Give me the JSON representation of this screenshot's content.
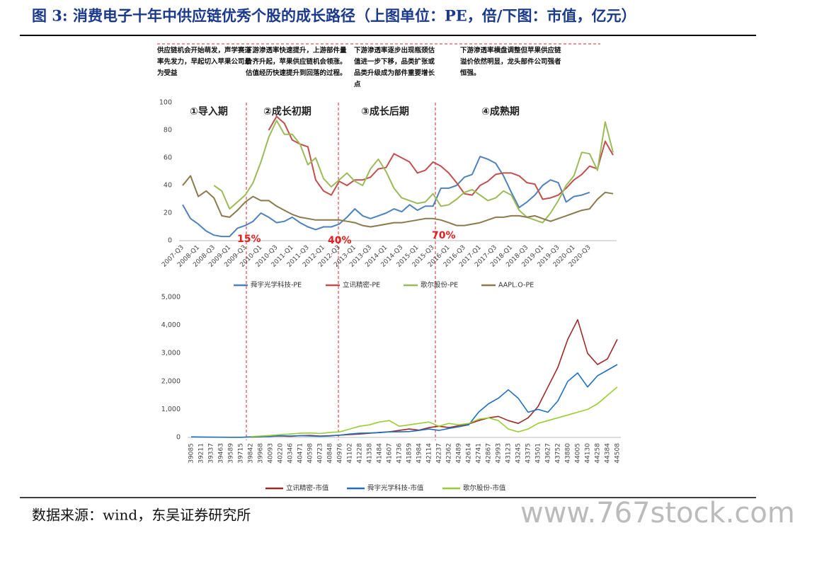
{
  "title": "图 3: 消费电子十年中供应链优秀个股的成长路径（上图单位：PE，倍/下图：市值，亿元）",
  "source": "数据来源：wind，东吴证券研究所",
  "watermark": "www.767stock.com",
  "chart_data": [
    {
      "type": "line",
      "notes": [
        "供应链机会开始萌发，声学赛道率先发力，早起切入苹果公司最为受益",
        "下游渗透率快速提升，上游部件量价齐升起，苹果供应链机会领涨。估值经历快速提升到回落的过程。",
        "下游渗透率逐步出现瓶颈估值进一步下移，品类扩张或品类升级成为部件重要增长点",
        "下游渗透率横盘调整但苹果供应链溢价依然明显，龙头部件公司强者恒强。"
      ],
      "phases": [
        "①导入期",
        "②成长初期",
        "③成长后期",
        "④成熟期"
      ],
      "penetration": [
        "15%",
        "40%",
        "70%"
      ],
      "categories": [
        "2007-Q3",
        null,
        "2008-Q1",
        null,
        "2008-Q3",
        null,
        "2009-Q1",
        null,
        "2009-Q3",
        null,
        "2010-Q1",
        null,
        "2010-Q3",
        null,
        "2011-Q1",
        null,
        "2011-Q3",
        null,
        "2012-Q1",
        null,
        "2012-Q3",
        null,
        "2013-Q1",
        null,
        "2013-Q3",
        null,
        "2014-Q1",
        null,
        "2014-Q3",
        null,
        "2015-Q1",
        null,
        "2015-Q3",
        null,
        "2016-Q1",
        null,
        "2016-Q3",
        null,
        "2017-Q1",
        null,
        "2017-Q3",
        null,
        "2018-Q1",
        null,
        "2018-Q3",
        null,
        "2019-Q1",
        null,
        "2019-Q3",
        null,
        "2020-Q1",
        null,
        "2020-Q3",
        null,
        null,
        null
      ],
      "series": [
        {
          "name": "舜宇光学科技-PE",
          "color": "#4f81bd",
          "values": [
            26,
            16,
            12,
            7,
            4,
            3,
            3,
            9,
            11,
            14,
            20,
            17,
            13,
            14,
            17,
            13,
            10,
            8,
            10,
            10,
            12,
            17,
            23,
            18,
            16,
            18,
            20,
            23,
            21,
            26,
            22,
            25,
            25,
            38,
            38,
            40,
            46,
            48,
            61,
            59,
            56,
            47,
            35,
            24,
            28,
            33,
            40,
            44,
            42,
            28,
            32,
            33,
            35,
            null,
            null,
            null
          ]
        },
        {
          "name": "立讯精密-PE",
          "color": "#c0504d",
          "values": [
            null,
            null,
            null,
            null,
            null,
            null,
            null,
            null,
            null,
            null,
            null,
            80,
            90,
            85,
            73,
            70,
            68,
            44,
            36,
            33,
            43,
            40,
            44,
            44,
            46,
            52,
            53,
            63,
            60,
            57,
            49,
            51,
            57,
            54,
            49,
            42,
            34,
            33,
            40,
            43,
            48,
            49,
            49,
            47,
            42,
            41,
            30,
            31,
            33,
            38,
            44,
            48,
            54,
            52,
            72,
            62
          ]
        },
        {
          "name": "歌尔股份-PE",
          "color": "#9bbb59",
          "values": [
            null,
            null,
            null,
            null,
            40,
            36,
            23,
            28,
            33,
            42,
            57,
            75,
            87,
            77,
            77,
            70,
            55,
            60,
            45,
            39,
            44,
            49,
            43,
            40,
            52,
            59,
            50,
            38,
            31,
            29,
            27,
            28,
            34,
            25,
            26,
            30,
            35,
            37,
            33,
            29,
            31,
            36,
            33,
            22,
            17,
            15,
            13,
            20,
            29,
            40,
            47,
            64,
            63,
            51,
            86,
            64
          ]
        },
        {
          "name": "AAPL.O-PE",
          "color": "#8c7a4d",
          "values": [
            40,
            47,
            32,
            36,
            31,
            18,
            17,
            22,
            28,
            32,
            29,
            29,
            25,
            22,
            19,
            17,
            16,
            15,
            15,
            15,
            15,
            14,
            13,
            11,
            10,
            11,
            12,
            13,
            13,
            14,
            15,
            16,
            16,
            15,
            13,
            11,
            11,
            12,
            13,
            15,
            17,
            17,
            18,
            18,
            17,
            18,
            16,
            14,
            16,
            18,
            20,
            22,
            23,
            30,
            35,
            34
          ]
        }
      ],
      "ylim": [
        0,
        100
      ],
      "yticks": [
        0,
        20,
        40,
        60,
        80,
        100
      ]
    },
    {
      "type": "line",
      "categories": [
        "39085",
        "39211",
        "39337",
        "39463",
        "39589",
        "39715",
        "39842",
        "39968",
        "40093",
        "40220",
        "40346",
        "40471",
        "40598",
        "40723",
        "40848",
        "40976",
        "41102",
        "41228",
        "41358",
        "41484",
        "41607",
        "41736",
        "41859",
        "41984",
        "42114",
        "42237",
        "42362",
        "42489",
        "42614",
        "42741",
        "42867",
        "42993",
        "43123",
        "43245",
        "43375",
        "43501",
        "43627",
        "43752",
        "43880",
        "44005",
        "44130",
        "44258",
        "44384",
        "44508"
      ],
      "series": [
        {
          "name": "立讯精密-市值",
          "color": "#a0282a",
          "values": [
            null,
            null,
            null,
            null,
            null,
            null,
            10,
            30,
            40,
            50,
            40,
            60,
            70,
            50,
            60,
            80,
            100,
            120,
            150,
            180,
            200,
            250,
            300,
            260,
            350,
            400,
            350,
            420,
            480,
            600,
            700,
            750,
            600,
            500,
            700,
            1100,
            1800,
            2500,
            3500,
            4200,
            3000,
            2600,
            2800,
            3500
          ]
        },
        {
          "name": "舜宇光学科技-市值",
          "color": "#1f6fc1",
          "values": [
            20,
            15,
            10,
            8,
            5,
            5,
            20,
            30,
            40,
            60,
            50,
            60,
            50,
            40,
            50,
            80,
            120,
            150,
            160,
            170,
            200,
            200,
            210,
            250,
            300,
            250,
            320,
            380,
            450,
            900,
            1200,
            1400,
            1700,
            1400,
            900,
            1000,
            900,
            1300,
            2000,
            2300,
            1800,
            2200,
            2400,
            2600
          ]
        },
        {
          "name": "歌尔股份-市值",
          "color": "#9acd32",
          "values": [
            null,
            null,
            null,
            null,
            null,
            null,
            30,
            50,
            70,
            100,
            120,
            150,
            160,
            140,
            180,
            200,
            300,
            400,
            450,
            550,
            600,
            400,
            450,
            500,
            550,
            400,
            500,
            450,
            500,
            650,
            700,
            600,
            300,
            200,
            300,
            500,
            600,
            700,
            800,
            900,
            1000,
            1200,
            1500,
            1800
          ]
        }
      ],
      "ylim": [
        0,
        5000
      ],
      "yticks": [
        0,
        {
          "value": 1000,
          "label": "1,000"
        },
        {
          "value": 2000,
          "label": "2,000"
        },
        {
          "value": 3000,
          "label": "3,000"
        },
        {
          "value": 4000,
          "label": "4,000"
        },
        {
          "value": 5000,
          "label": "5,000"
        }
      ]
    }
  ]
}
